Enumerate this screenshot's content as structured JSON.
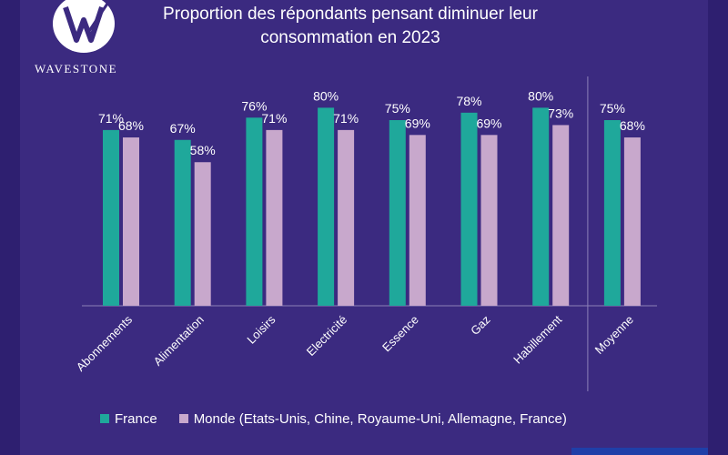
{
  "brand": {
    "name": "WAVESTONE"
  },
  "colors": {
    "background": "#3b2a80",
    "france": "#1fa89b",
    "monde": "#c8a8cc",
    "text": "#ffffff",
    "axis": "#8c80b8"
  },
  "chart_data": {
    "type": "bar",
    "title_lines": [
      "Proportion des répondants pensant diminuer leur",
      "consommation en 2023"
    ],
    "categories": [
      "Abonnements",
      "Alimentation",
      "Loisirs",
      "Electricité",
      "Essence",
      "Gaz",
      "Habillement",
      "Moyenne"
    ],
    "series": [
      {
        "name": "France",
        "values": [
          71,
          67,
          76,
          80,
          75,
          78,
          80,
          75
        ],
        "labels": [
          "71%",
          "67%",
          "76%",
          "80%",
          "75%",
          "78%",
          "80%",
          "75%"
        ]
      },
      {
        "name": "Monde (Etats-Unis, Chine, Royaume-Uni, Allemagne, France)",
        "values": [
          68,
          58,
          71,
          71,
          69,
          69,
          73,
          68
        ],
        "labels": [
          "68%",
          "58%",
          "71%",
          "71%",
          "69%",
          "69%",
          "73%",
          "68%"
        ]
      }
    ],
    "ylim": [
      0,
      100
    ],
    "xlabel": "",
    "ylabel": "",
    "legend_position": "bottom",
    "grid": false,
    "separator_before": "Moyenne"
  }
}
